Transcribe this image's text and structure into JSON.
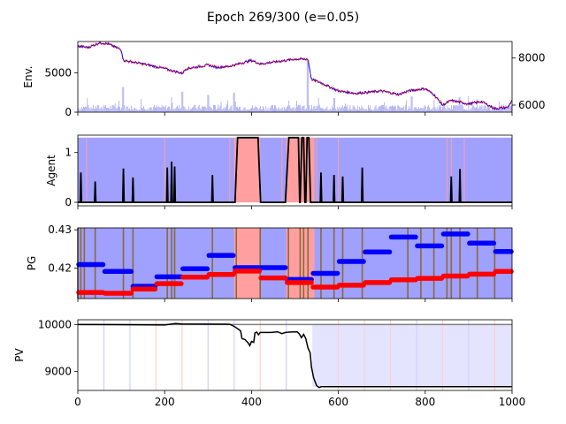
{
  "title": "Epoch 269/300 (e=0.05)",
  "colors": {
    "hold": "#a0a0ff",
    "buy": "#ff9f9f",
    "price_line": "#0000ff",
    "price_marker": "#ff0000",
    "volume": "#9a9aef",
    "agent_line": "#000000",
    "pg_blue": "#0000ff",
    "pg_red": "#ff0000",
    "pg_vline": "#8a6a3a",
    "pv_line": "#000000",
    "pv_fill": "#e4e4ff",
    "pv_ref": "#808080"
  },
  "chart_data": [
    {
      "type": "line",
      "name": "env",
      "ylabel": "Env.",
      "xlim": [
        0,
        1000
      ],
      "ylim_left": [
        0,
        9000
      ],
      "yticks_left": [
        0,
        5000
      ],
      "ylim_right": [
        5700,
        8700
      ],
      "yticks_right": [
        6000,
        8000
      ],
      "price_keypoints": [
        [
          0,
          8500
        ],
        [
          25,
          8450
        ],
        [
          50,
          8650
        ],
        [
          70,
          8600
        ],
        [
          100,
          8350
        ],
        [
          105,
          7900
        ],
        [
          150,
          7750
        ],
        [
          200,
          7550
        ],
        [
          240,
          7350
        ],
        [
          250,
          7550
        ],
        [
          300,
          7700
        ],
        [
          320,
          7600
        ],
        [
          350,
          7650
        ],
        [
          400,
          7900
        ],
        [
          420,
          7750
        ],
        [
          460,
          7850
        ],
        [
          500,
          7950
        ],
        [
          530,
          7950
        ],
        [
          538,
          7100
        ],
        [
          560,
          6950
        ],
        [
          600,
          6600
        ],
        [
          640,
          6500
        ],
        [
          700,
          6600
        ],
        [
          740,
          6450
        ],
        [
          760,
          6600
        ],
        [
          800,
          6700
        ],
        [
          820,
          6450
        ],
        [
          840,
          6000
        ],
        [
          860,
          6200
        ],
        [
          900,
          6050
        ],
        [
          930,
          6150
        ],
        [
          960,
          5850
        ],
        [
          990,
          5900
        ],
        [
          1000,
          6200
        ]
      ],
      "volume_peaks": [
        [
          105,
          3200
        ],
        [
          240,
          2600
        ],
        [
          300,
          2200
        ],
        [
          360,
          2500
        ],
        [
          530,
          6600
        ],
        [
          590,
          1800
        ],
        [
          770,
          2000
        ],
        [
          880,
          1900
        ]
      ]
    },
    {
      "type": "line",
      "name": "agent",
      "ylabel": "Agent",
      "xlim": [
        0,
        1000
      ],
      "ylim": [
        -0.07,
        1.35
      ],
      "yticks": [
        0,
        1
      ],
      "buy_spans": [
        [
          360,
          420
        ],
        [
          480,
          545
        ]
      ],
      "buy_lines": [
        20,
        200,
        350,
        400,
        470,
        550,
        600,
        850,
        860,
        890
      ],
      "spikes": [
        [
          7,
          0.6
        ],
        [
          40,
          0.42
        ],
        [
          105,
          0.68
        ],
        [
          127,
          0.5
        ],
        [
          206,
          0.7
        ],
        [
          216,
          0.82
        ],
        [
          223,
          0.72
        ],
        [
          310,
          0.55
        ],
        [
          560,
          0.6
        ],
        [
          590,
          0.55
        ],
        [
          610,
          0.52
        ],
        [
          655,
          0.7
        ],
        [
          860,
          0.52
        ],
        [
          880,
          0.67
        ]
      ],
      "plateaus": [
        [
          362,
          368,
          415,
          421,
          1.3
        ],
        [
          478,
          486,
          508,
          511,
          1.3
        ],
        [
          512,
          516,
          520,
          523,
          1.3
        ],
        [
          525,
          528,
          532,
          536,
          1.3
        ]
      ]
    },
    {
      "type": "scatter",
      "name": "pg",
      "ylabel": "PG",
      "xlim": [
        0,
        1000
      ],
      "ylim": [
        0.412,
        0.4305
      ],
      "yticks": [
        0.42,
        0.43
      ],
      "ytick_labels": [
        "0.42",
        "0.43"
      ],
      "buy_spans": [
        [
          360,
          420
        ],
        [
          480,
          545
        ]
      ],
      "blue_segments": [
        [
          0,
          60,
          0.4209
        ],
        [
          60,
          125,
          0.4191
        ],
        [
          125,
          180,
          0.4152
        ],
        [
          180,
          240,
          0.4177
        ],
        [
          240,
          300,
          0.4198
        ],
        [
          300,
          360,
          0.4233
        ],
        [
          360,
          420,
          0.4201
        ],
        [
          420,
          480,
          0.4201
        ],
        [
          480,
          540,
          0.417
        ],
        [
          540,
          600,
          0.4186
        ],
        [
          600,
          660,
          0.4217
        ],
        [
          660,
          720,
          0.4242
        ],
        [
          720,
          780,
          0.4281
        ],
        [
          780,
          840,
          0.4258
        ],
        [
          840,
          900,
          0.4289
        ],
        [
          900,
          960,
          0.4265
        ],
        [
          960,
          1000,
          0.4243
        ]
      ],
      "red_segments": [
        [
          0,
          60,
          0.4136
        ],
        [
          60,
          125,
          0.4134
        ],
        [
          125,
          180,
          0.4145
        ],
        [
          180,
          240,
          0.4159
        ],
        [
          240,
          300,
          0.4176
        ],
        [
          300,
          360,
          0.4183
        ],
        [
          360,
          420,
          0.4192
        ],
        [
          420,
          480,
          0.4174
        ],
        [
          480,
          540,
          0.4162
        ],
        [
          540,
          600,
          0.415
        ],
        [
          600,
          660,
          0.4155
        ],
        [
          660,
          720,
          0.4162
        ],
        [
          720,
          780,
          0.4169
        ],
        [
          780,
          840,
          0.4173
        ],
        [
          840,
          900,
          0.4179
        ],
        [
          900,
          960,
          0.4184
        ],
        [
          960,
          1000,
          0.4191
        ]
      ],
      "vlines": [
        0,
        7,
        15,
        40,
        105,
        127,
        206,
        216,
        223,
        310,
        365,
        420,
        485,
        512,
        520,
        530,
        560,
        590,
        610,
        655,
        760,
        790,
        820,
        850,
        860,
        880,
        920,
        960
      ]
    },
    {
      "type": "line",
      "name": "pv",
      "ylabel": "PV",
      "xlim": [
        0,
        1000
      ],
      "xticks": [
        0,
        200,
        400,
        600,
        800,
        1000
      ],
      "ylim": [
        8600,
        10100
      ],
      "yticks": [
        9000,
        10000
      ],
      "reference": 10000,
      "fill_from": 540,
      "faint_lines": [
        [
          60,
          "blue"
        ],
        [
          120,
          "blue"
        ],
        [
          180,
          "red"
        ],
        [
          240,
          "red"
        ],
        [
          300,
          "blue"
        ],
        [
          360,
          "blue"
        ],
        [
          420,
          "red"
        ],
        [
          480,
          "blue"
        ],
        [
          600,
          "red"
        ],
        [
          660,
          "red"
        ],
        [
          720,
          "red"
        ],
        [
          780,
          "blue"
        ],
        [
          840,
          "red"
        ],
        [
          900,
          "blue"
        ],
        [
          960,
          "red"
        ]
      ],
      "points": [
        [
          0,
          10000
        ],
        [
          200,
          9990
        ],
        [
          225,
          10020
        ],
        [
          240,
          10010
        ],
        [
          350,
          10005
        ],
        [
          360,
          9960
        ],
        [
          370,
          9900
        ],
        [
          375,
          9860
        ],
        [
          378,
          9700
        ],
        [
          385,
          9680
        ],
        [
          392,
          9610
        ],
        [
          396,
          9550
        ],
        [
          400,
          9640
        ],
        [
          405,
          9620
        ],
        [
          408,
          9820
        ],
        [
          412,
          9840
        ],
        [
          416,
          9780
        ],
        [
          420,
          9830
        ],
        [
          445,
          9830
        ],
        [
          460,
          9845
        ],
        [
          470,
          9805
        ],
        [
          478,
          9830
        ],
        [
          490,
          9840
        ],
        [
          505,
          9845
        ],
        [
          510,
          9800
        ],
        [
          515,
          9720
        ],
        [
          520,
          9790
        ],
        [
          525,
          9700
        ],
        [
          530,
          9500
        ],
        [
          535,
          9400
        ],
        [
          538,
          9100
        ],
        [
          543,
          8870
        ],
        [
          550,
          8700
        ],
        [
          556,
          8660
        ],
        [
          560,
          8680
        ],
        [
          1000,
          8680
        ]
      ]
    }
  ]
}
